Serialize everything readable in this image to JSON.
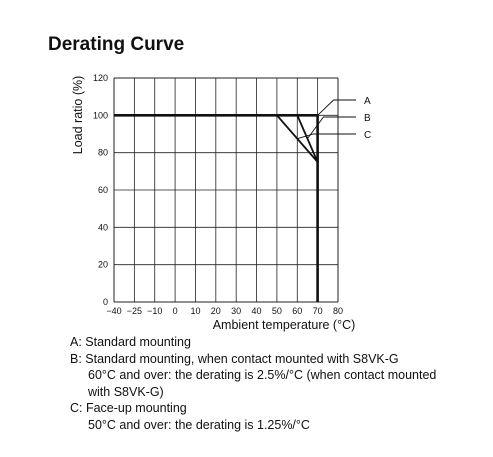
{
  "heading": "Derating Curve",
  "chart_data": {
    "type": "line",
    "title": "",
    "xlabel": "Ambient temperature (°C)",
    "ylabel": "Load ratio (%)",
    "xlim": [
      -40,
      80
    ],
    "ylim": [
      0,
      120
    ],
    "x_ticks": [
      -40,
      -25,
      -10,
      0,
      10,
      20,
      30,
      40,
      50,
      60,
      70,
      80
    ],
    "x_tick_labels": [
      "−40",
      "−25",
      "−10",
      "0",
      "10",
      "20",
      "30",
      "40",
      "50",
      "60",
      "70",
      "80"
    ],
    "y_ticks": [
      0,
      20,
      40,
      60,
      80,
      100,
      120
    ],
    "grid": true,
    "series": [
      {
        "name": "A",
        "points": [
          [
            -40,
            100
          ],
          [
            70,
            100
          ],
          [
            70,
            0
          ]
        ]
      },
      {
        "name": "B",
        "points": [
          [
            -40,
            100
          ],
          [
            60,
            100
          ],
          [
            70,
            75
          ],
          [
            70,
            0
          ]
        ]
      },
      {
        "name": "C",
        "points": [
          [
            -40,
            100
          ],
          [
            50,
            100
          ],
          [
            70,
            75
          ],
          [
            70,
            0
          ]
        ]
      }
    ],
    "legend_placement": "right, labels with leader lines"
  },
  "notes": [
    {
      "title": "A: Standard mounting",
      "lines": []
    },
    {
      "title": "B: Standard mounting, when contact mounted with S8VK-G",
      "lines": [
        "60°C and over: the derating is 2.5%/°C (when contact mounted",
        "with S8VK-G)"
      ]
    },
    {
      "title": "C: Face-up mounting",
      "lines": [
        "50°C and over: the derating is 1.25%/°C"
      ]
    }
  ]
}
